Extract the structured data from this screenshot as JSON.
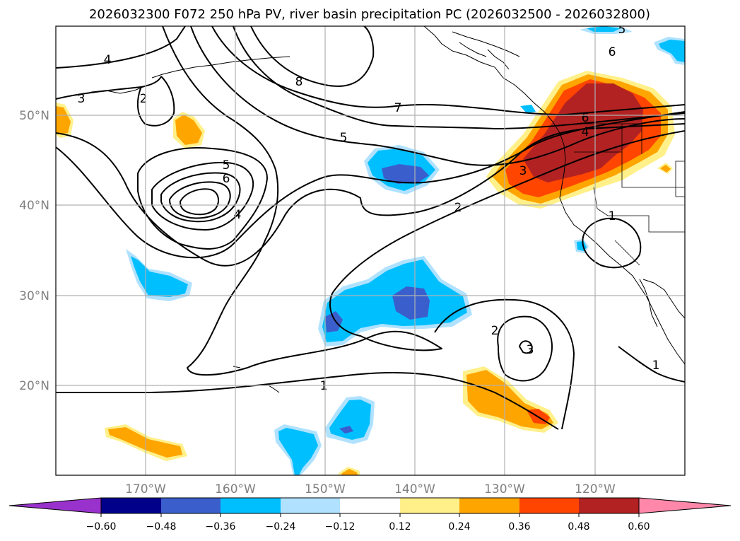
{
  "title": "2026032300 F072 250 hPa PV, river basin precipitation PC (2026032500 - 2026032800)",
  "lat_ticks": [
    "50°N",
    "40°N",
    "30°N",
    "20°N"
  ],
  "lon_ticks": [
    "170°W",
    "160°W",
    "150°W",
    "140°W",
    "130°W",
    "120°W"
  ],
  "colorbar": {
    "levels": [
      "−0.60",
      "−0.48",
      "−0.36",
      "−0.24",
      "−0.12",
      "0.12",
      "0.24",
      "0.36",
      "0.48",
      "0.60"
    ],
    "colors": [
      "#9932cc",
      "#00008b",
      "#3a5fcd",
      "#00bfff",
      "#b0e2ff",
      "#ffffff",
      "#fff08a",
      "#ffa500",
      "#ff4500",
      "#b22222",
      "#ff88aa"
    ]
  },
  "contour_labels": [
    "4",
    "3",
    "2",
    "8",
    "7",
    "5",
    "5",
    "6",
    "4",
    "2",
    "3",
    "6",
    "5",
    "6",
    "4",
    "1",
    "1",
    "2",
    "3",
    "1"
  ],
  "colors": {
    "neg_light": "#b0e2ff",
    "neg_mid": "#00bfff",
    "neg_dark": "#3a5fcd",
    "pos_light": "#fff08a",
    "pos_mid": "#ffa500",
    "pos_strong": "#ff4500",
    "pos_max": "#b22222"
  }
}
